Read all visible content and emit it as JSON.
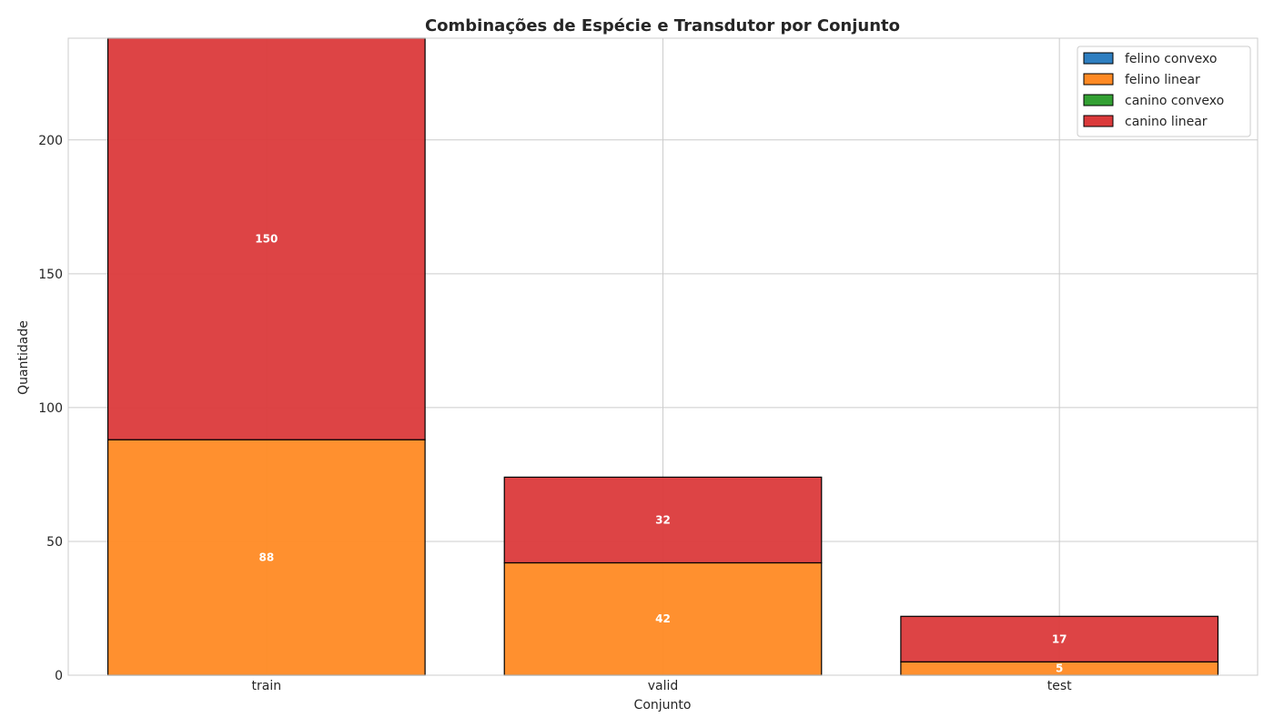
{
  "chart_data": {
    "type": "bar",
    "stacked": true,
    "title": "Combinações de Espécie e Transdutor por Conjunto",
    "xlabel": "Conjunto",
    "ylabel": "Quantidade",
    "categories": [
      "train",
      "valid",
      "test"
    ],
    "ylim": [
      0,
      238
    ],
    "yticks": [
      0,
      50,
      100,
      150,
      200
    ],
    "grid": true,
    "legend_position": "top-right",
    "series": [
      {
        "name": "felino convexo",
        "color": "#2f7fc1",
        "values": [
          0,
          0,
          0
        ]
      },
      {
        "name": "felino linear",
        "color": "#ff8a24",
        "values": [
          88,
          42,
          5
        ]
      },
      {
        "name": "canino convexo",
        "color": "#33a033",
        "values": [
          0,
          0,
          0
        ]
      },
      {
        "name": "canino linear",
        "color": "#db3a3b",
        "values": [
          150,
          32,
          17
        ]
      }
    ]
  }
}
